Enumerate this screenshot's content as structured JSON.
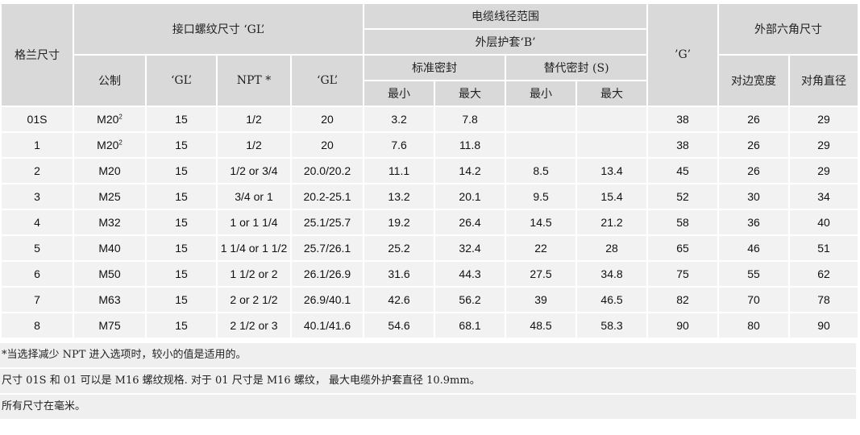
{
  "header": {
    "gland_size": "格兰尺寸",
    "thread_group": "接口螺纹尺寸 ‘GL’",
    "metric": "公制",
    "gl1": "‘GL’",
    "npt": "NPT *",
    "gl2": "‘GL’",
    "cable_range": "电缆线径范围",
    "outer_sheath": "外层护套‘B’",
    "standard_seal": "标准密封",
    "alt_seal": "替代密封 (S)",
    "min": "最小",
    "max": "最大",
    "g": "’G’",
    "hex_group": "外部六角尺寸",
    "across_flats": "对边宽度",
    "across_corners": "对角直径"
  },
  "rows": [
    {
      "size": "01S",
      "metric": "M20",
      "sup": "2",
      "gl1": "15",
      "npt": "1/2",
      "gl2": "20",
      "smin": "3.2",
      "smax": "7.8",
      "amin": "",
      "amax": "",
      "g": "38",
      "af": "26",
      "ac": "29"
    },
    {
      "size": "1",
      "metric": "M20",
      "sup": "2",
      "gl1": "15",
      "npt": "1/2",
      "gl2": "20",
      "smin": "7.6",
      "smax": "11.8",
      "amin": "",
      "amax": "",
      "g": "38",
      "af": "26",
      "ac": "29"
    },
    {
      "size": "2",
      "metric": "M20",
      "sup": "",
      "gl1": "15",
      "npt": "1/2 or 3/4",
      "gl2": "20.0/20.2",
      "smin": "11.1",
      "smax": "14.2",
      "amin": "8.5",
      "amax": "13.4",
      "g": "45",
      "af": "26",
      "ac": "29"
    },
    {
      "size": "3",
      "metric": "M25",
      "sup": "",
      "gl1": "15",
      "npt": "3/4 or 1",
      "gl2": "20.2-25.1",
      "smin": "13.2",
      "smax": "20.1",
      "amin": "9.5",
      "amax": "15.4",
      "g": "52",
      "af": "30",
      "ac": "34"
    },
    {
      "size": "4",
      "metric": "M32",
      "sup": "",
      "gl1": "15",
      "npt": "1 or 1 1/4",
      "gl2": "25.1/25.7",
      "smin": "19.2",
      "smax": "26.4",
      "amin": "14.5",
      "amax": "21.2",
      "g": "58",
      "af": "36",
      "ac": "40"
    },
    {
      "size": "5",
      "metric": "M40",
      "sup": "",
      "gl1": "15",
      "npt": "1 1/4 or 1 1/2",
      "gl2": "25.7/26.1",
      "smin": "25.2",
      "smax": "32.4",
      "amin": "22",
      "amax": "28",
      "g": "65",
      "af": "46",
      "ac": "51"
    },
    {
      "size": "6",
      "metric": "M50",
      "sup": "",
      "gl1": "15",
      "npt": "1 1/2 or 2",
      "gl2": "26.1/26.9",
      "smin": "31.6",
      "smax": "44.3",
      "amin": "27.5",
      "amax": "34.8",
      "g": "75",
      "af": "55",
      "ac": "62"
    },
    {
      "size": "7",
      "metric": "M63",
      "sup": "",
      "gl1": "15",
      "npt": "2 or 2 1/2",
      "gl2": "26.9/40.1",
      "smin": "42.6",
      "smax": "56.2",
      "amin": "39",
      "amax": "46.5",
      "g": "82",
      "af": "70",
      "ac": "78"
    },
    {
      "size": "8",
      "metric": "M75",
      "sup": "",
      "gl1": "15",
      "npt": "2 1/2 or 3",
      "gl2": "40.1/41.6",
      "smin": "54.6",
      "smax": "68.1",
      "amin": "48.5",
      "amax": "58.3",
      "g": "90",
      "af": "80",
      "ac": "90"
    }
  ],
  "notes": [
    "*当选择减少 NPT 进入选项时，较小的值是适用的。",
    "尺寸 01S 和 01 可以是 M16 螺纹规格. 对于 01 尺寸是 M16 螺纹， 最大电缆外护套直径 10.9mm。",
    "所有尺寸在毫米。"
  ]
}
